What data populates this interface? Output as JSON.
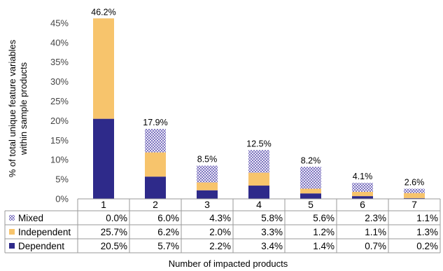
{
  "chart_data": {
    "type": "bar",
    "stacked": true,
    "categories": [
      "1",
      "2",
      "3",
      "4",
      "5",
      "6",
      "7"
    ],
    "series": [
      {
        "name": "Dependent",
        "values": [
          20.5,
          5.7,
          2.2,
          3.4,
          1.4,
          0.7,
          0.2
        ],
        "labels": [
          "20.5%",
          "5.7%",
          "2.2%",
          "3.4%",
          "1.4%",
          "0.7%",
          "0.2%"
        ],
        "color": "#2E2A8A",
        "pattern": "solid"
      },
      {
        "name": "Independent",
        "values": [
          25.7,
          6.2,
          2.0,
          3.3,
          1.2,
          1.1,
          1.3
        ],
        "labels": [
          "25.7%",
          "6.2%",
          "2.0%",
          "3.3%",
          "1.2%",
          "1.1%",
          "1.3%"
        ],
        "color": "#F7C46C",
        "pattern": "solid"
      },
      {
        "name": "Mixed",
        "values": [
          0.0,
          6.0,
          4.3,
          5.8,
          5.6,
          2.3,
          1.1
        ],
        "labels": [
          "0.0%",
          "6.0%",
          "4.3%",
          "5.8%",
          "5.6%",
          "2.3%",
          "1.1%"
        ],
        "color": "#8C84C8",
        "pattern": "checkered"
      }
    ],
    "totals": [
      "46.2%",
      "17.9%",
      "8.5%",
      "12.5%",
      "8.2%",
      "4.1%",
      "2.6%"
    ],
    "total_values": [
      46.2,
      17.9,
      8.5,
      12.5,
      8.2,
      4.1,
      2.6
    ],
    "yticks": [
      "0%",
      "5%",
      "10%",
      "15%",
      "20%",
      "25%",
      "30%",
      "35%",
      "40%",
      "45%"
    ],
    "ylim": [
      0,
      47.5
    ],
    "ylabel_lines": [
      "% of total unique feature variables",
      "within sample products"
    ],
    "xlabel": "Number of impacted products",
    "grid": false,
    "legend": "data-table"
  }
}
